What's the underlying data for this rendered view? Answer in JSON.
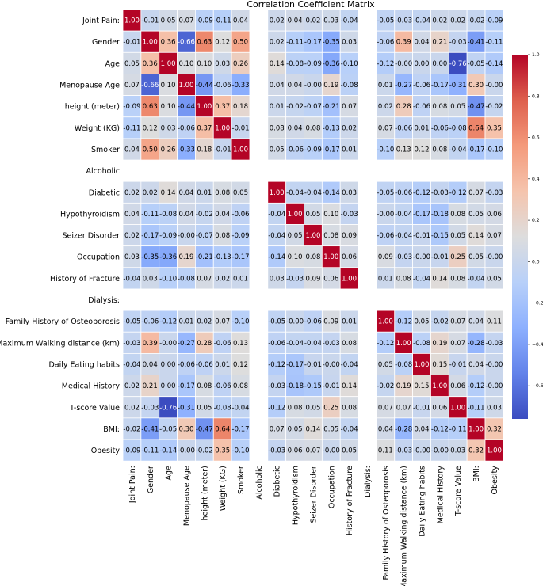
{
  "chart_data": {
    "type": "heatmap",
    "title": "Correlation Coefficient Matrix",
    "labels": [
      "Joint Pain:",
      "Gender",
      "Age",
      "Menopause Age",
      "height  (meter)",
      "Weight (KG)",
      "Smoker",
      "Alcoholic",
      "Diabetic",
      "Hypothyroidism",
      "Seizer Disorder",
      "Occupation",
      "History of Fracture",
      "Dialysis:",
      "Family History of Osteoporosis",
      "Maximum Walking distance (km)",
      "Daily Eating habits",
      "Medical History",
      "T-score Value",
      "BMI:",
      "Obesity"
    ],
    "cells": [
      [
        "1.00",
        "-0.01",
        "0.05",
        "0.07",
        "-0.09",
        "-0.11",
        "0.04",
        "",
        "0.02",
        "0.04",
        "0.02",
        "0.03",
        "-0.04",
        "",
        "-0.05",
        "-0.03",
        "-0.04",
        "0.02",
        "0.02",
        "-0.02",
        "-0.09"
      ],
      [
        "-0.01",
        "1.00",
        "0.36",
        "-0.66",
        "0.63",
        "0.12",
        "0.50",
        "",
        "0.02",
        "-0.11",
        "-0.17",
        "-0.35",
        "0.03",
        "",
        "-0.06",
        "0.39",
        "0.04",
        "0.21",
        "-0.03",
        "-0.41",
        "-0.11"
      ],
      [
        "0.05",
        "0.36",
        "1.00",
        "0.10",
        "0.10",
        "0.03",
        "0.26",
        "",
        "0.14",
        "-0.08",
        "-0.09",
        "-0.36",
        "-0.10",
        "",
        "-0.12",
        "-0.00",
        "0.00",
        "0.00",
        "-0.76",
        "-0.05",
        "-0.14"
      ],
      [
        "0.07",
        "-0.66",
        "0.10",
        "1.00",
        "-0.44",
        "-0.06",
        "-0.33",
        "",
        "0.04",
        "0.04",
        "-0.00",
        "0.19",
        "-0.08",
        "",
        "0.01",
        "-0.27",
        "-0.06",
        "-0.17",
        "-0.31",
        "0.30",
        "-0.00"
      ],
      [
        "-0.09",
        "0.63",
        "0.10",
        "-0.44",
        "1.00",
        "0.37",
        "0.18",
        "",
        "0.01",
        "-0.02",
        "-0.07",
        "-0.21",
        "0.07",
        "",
        "0.02",
        "0.28",
        "-0.06",
        "0.08",
        "0.05",
        "-0.47",
        "-0.02"
      ],
      [
        "-0.11",
        "0.12",
        "0.03",
        "-0.06",
        "0.37",
        "1.00",
        "-0.01",
        "",
        "0.08",
        "0.04",
        "0.08",
        "-0.13",
        "0.02",
        "",
        "0.07",
        "-0.06",
        "0.01",
        "-0.06",
        "-0.08",
        "0.64",
        "0.35"
      ],
      [
        "0.04",
        "0.50",
        "0.26",
        "-0.33",
        "0.18",
        "-0.01",
        "1.00",
        "",
        "0.05",
        "-0.06",
        "-0.09",
        "-0.17",
        "0.01",
        "",
        "-0.10",
        "0.13",
        "0.12",
        "0.08",
        "-0.04",
        "-0.17",
        "-0.10"
      ],
      [
        "",
        "",
        "",
        "",
        "",
        "",
        "",
        "",
        "",
        "",
        "",
        "",
        "",
        "",
        "",
        "",
        "",
        "",
        "",
        "",
        ""
      ],
      [
        "0.02",
        "0.02",
        "0.14",
        "0.04",
        "0.01",
        "0.08",
        "0.05",
        "",
        "1.00",
        "-0.04",
        "-0.04",
        "-0.14",
        "0.03",
        "",
        "-0.05",
        "-0.06",
        "-0.12",
        "-0.03",
        "-0.12",
        "0.07",
        "-0.03"
      ],
      [
        "0.04",
        "-0.11",
        "-0.08",
        "0.04",
        "-0.02",
        "0.04",
        "-0.06",
        "",
        "-0.04",
        "1.00",
        "0.05",
        "0.10",
        "-0.03",
        "",
        "-0.00",
        "-0.04",
        "-0.17",
        "-0.18",
        "0.08",
        "0.05",
        "0.06"
      ],
      [
        "0.02",
        "-0.17",
        "-0.09",
        "-0.00",
        "-0.07",
        "0.08",
        "-0.09",
        "",
        "-0.04",
        "0.05",
        "1.00",
        "0.08",
        "0.09",
        "",
        "-0.06",
        "-0.04",
        "-0.01",
        "-0.15",
        "0.05",
        "0.14",
        "0.07"
      ],
      [
        "0.03",
        "-0.35",
        "-0.36",
        "0.19",
        "-0.21",
        "-0.13",
        "-0.17",
        "",
        "-0.14",
        "0.10",
        "0.08",
        "1.00",
        "0.06",
        "",
        "0.09",
        "-0.03",
        "-0.00",
        "-0.01",
        "0.25",
        "0.05",
        "-0.00"
      ],
      [
        "-0.04",
        "0.03",
        "-0.10",
        "-0.08",
        "0.07",
        "0.02",
        "0.01",
        "",
        "0.03",
        "-0.03",
        "0.09",
        "0.06",
        "1.00",
        "",
        "0.01",
        "0.08",
        "-0.04",
        "0.14",
        "0.08",
        "-0.04",
        "0.05"
      ],
      [
        "",
        "",
        "",
        "",
        "",
        "",
        "",
        "",
        "",
        "",
        "",
        "",
        "",
        "",
        "",
        "",
        "",
        "",
        "",
        "",
        ""
      ],
      [
        "-0.05",
        "-0.06",
        "-0.12",
        "0.01",
        "0.02",
        "0.07",
        "-0.10",
        "",
        "-0.05",
        "-0.00",
        "-0.06",
        "0.09",
        "0.01",
        "",
        "1.00",
        "-0.12",
        "0.05",
        "-0.02",
        "0.07",
        "0.04",
        "0.11"
      ],
      [
        "-0.03",
        "0.39",
        "-0.00",
        "-0.27",
        "0.28",
        "-0.06",
        "0.13",
        "",
        "-0.06",
        "-0.04",
        "-0.04",
        "-0.03",
        "0.08",
        "",
        "-0.12",
        "1.00",
        "-0.08",
        "0.19",
        "0.07",
        "-0.28",
        "-0.03"
      ],
      [
        "-0.04",
        "0.04",
        "0.00",
        "-0.06",
        "-0.06",
        "0.01",
        "0.12",
        "",
        "-0.12",
        "-0.17",
        "-0.01",
        "-0.00",
        "-0.04",
        "",
        "0.05",
        "-0.08",
        "1.00",
        "0.15",
        "-0.01",
        "0.04",
        "-0.00"
      ],
      [
        "0.02",
        "0.21",
        "0.00",
        "-0.17",
        "0.08",
        "-0.06",
        "0.08",
        "",
        "-0.03",
        "-0.18",
        "-0.15",
        "-0.01",
        "0.14",
        "",
        "-0.02",
        "0.19",
        "0.15",
        "1.00",
        "0.06",
        "-0.12",
        "-0.00"
      ],
      [
        "0.02",
        "-0.03",
        "-0.76",
        "-0.31",
        "0.05",
        "-0.08",
        "-0.04",
        "",
        "-0.12",
        "0.08",
        "0.05",
        "0.25",
        "0.08",
        "",
        "0.07",
        "0.07",
        "-0.01",
        "0.06",
        "1.00",
        "-0.11",
        "0.03"
      ],
      [
        "-0.02",
        "-0.41",
        "-0.05",
        "0.30",
        "-0.47",
        "0.64",
        "-0.17",
        "",
        "0.07",
        "0.05",
        "0.14",
        "0.05",
        "-0.04",
        "",
        "0.04",
        "-0.28",
        "0.04",
        "-0.12",
        "-0.11",
        "1.00",
        "0.32"
      ],
      [
        "-0.09",
        "-0.11",
        "-0.14",
        "-0.00",
        "-0.02",
        "0.35",
        "-0.10",
        "",
        "-0.03",
        "0.06",
        "0.07",
        "-0.00",
        "0.05",
        "",
        "0.11",
        "-0.03",
        "-0.00",
        "-0.00",
        "0.03",
        "0.32",
        "1.00"
      ]
    ],
    "colorbar": {
      "vmin": -0.76,
      "vmax": 1.0,
      "ticks": [
        -0.6,
        -0.4,
        -0.2,
        0.0,
        0.2,
        0.4,
        0.6,
        0.8,
        1.0
      ],
      "tick_labels": [
        "−0.6",
        "−0.4",
        "−0.2",
        "0.0",
        "0.2",
        "0.4",
        "0.6",
        "0.8",
        "1.0"
      ],
      "colormap": "coolwarm"
    }
  }
}
